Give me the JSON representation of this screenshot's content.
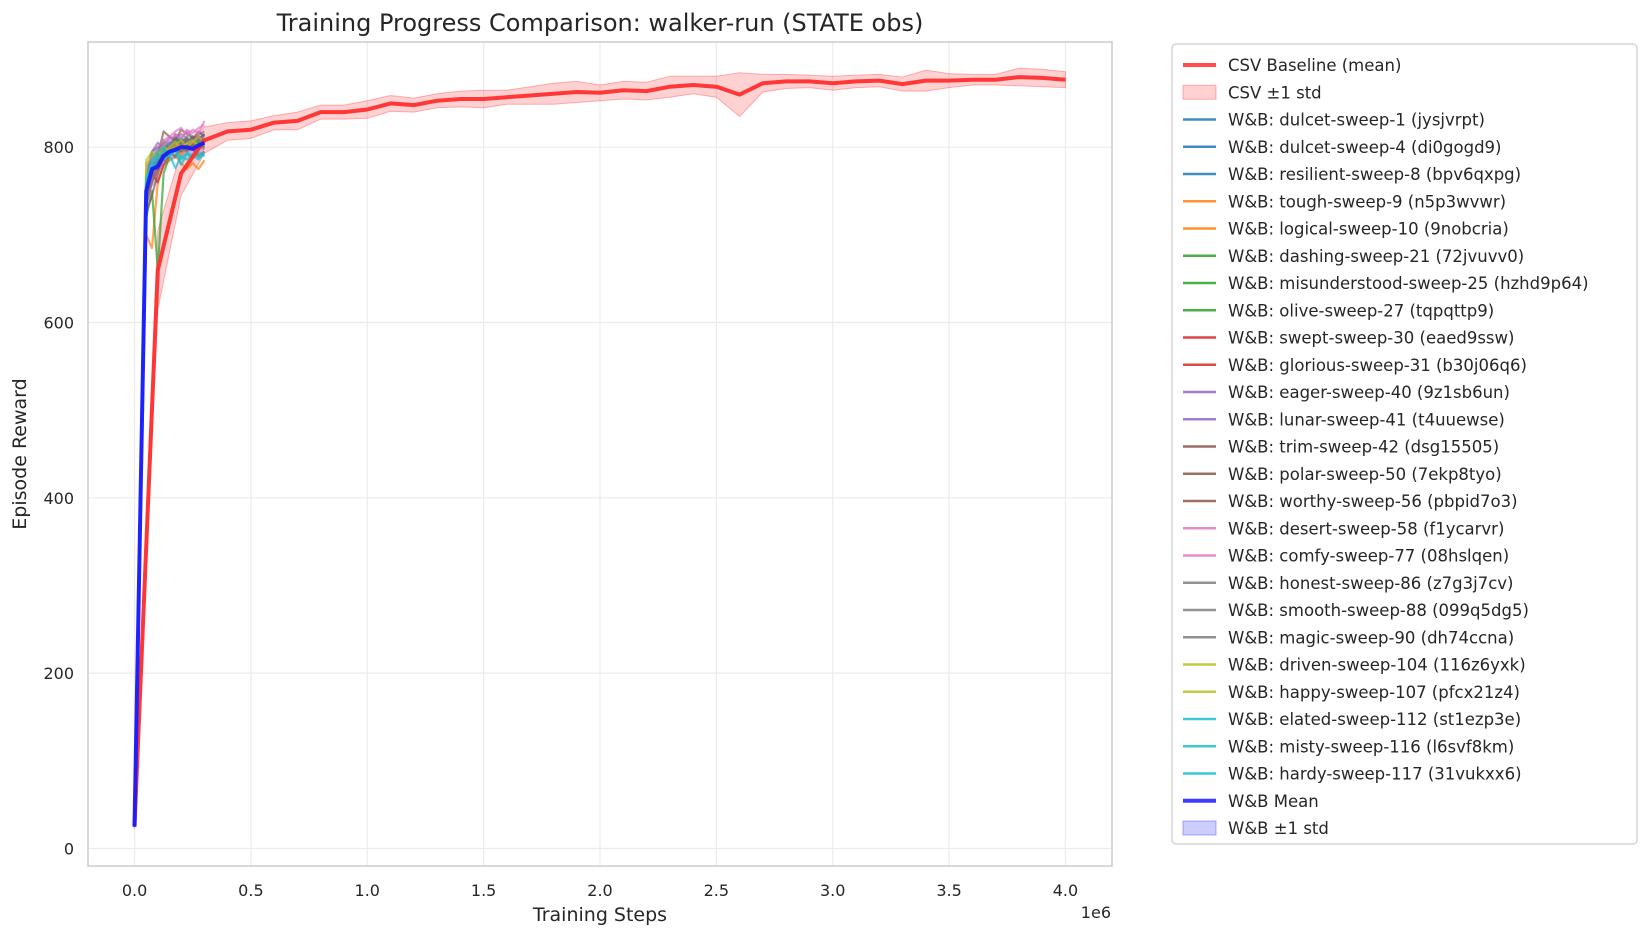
{
  "chart_data": {
    "type": "line",
    "title": "Training Progress Comparison: walker-run (STATE obs)",
    "xlabel": "Training Steps",
    "ylabel": "Episode Reward",
    "x_offset_label": "1e6",
    "xlim": [
      -200000,
      4200000
    ],
    "ylim": [
      -20,
      920
    ],
    "x_ticks": [
      0,
      500000,
      1000000,
      1500000,
      2000000,
      2500000,
      3000000,
      3500000,
      4000000
    ],
    "x_tick_labels": [
      "0.0",
      "0.5",
      "1.0",
      "1.5",
      "2.0",
      "2.5",
      "3.0",
      "3.5",
      "4.0"
    ],
    "y_ticks": [
      0,
      200,
      400,
      600,
      800
    ],
    "y_tick_labels": [
      "0",
      "200",
      "400",
      "600",
      "800"
    ],
    "grid": true,
    "legend_position": "outside-right",
    "baseline": {
      "name": "CSV Baseline (mean)",
      "band_name": "CSV ±1 std",
      "color": "#ff2e2e",
      "x": [
        0,
        100000,
        200000,
        300000,
        400000,
        500000,
        600000,
        700000,
        800000,
        900000,
        1000000,
        1100000,
        1200000,
        1300000,
        1400000,
        1500000,
        1600000,
        1700000,
        1800000,
        1900000,
        2000000,
        2100000,
        2200000,
        2300000,
        2400000,
        2500000,
        2600000,
        2700000,
        2800000,
        2900000,
        3000000,
        3100000,
        3200000,
        3300000,
        3400000,
        3500000,
        3600000,
        3700000,
        3800000,
        3900000,
        4000000
      ],
      "mean": [
        25,
        660,
        770,
        808,
        818,
        820,
        828,
        830,
        840,
        840,
        843,
        850,
        848,
        853,
        855,
        855,
        857,
        859,
        861,
        863,
        862,
        865,
        864,
        869,
        871,
        869,
        860,
        873,
        875,
        875,
        873,
        875,
        876,
        872,
        876,
        876,
        877,
        877,
        880,
        879,
        877
      ],
      "std": [
        3,
        45,
        25,
        15,
        10,
        10,
        8,
        10,
        8,
        8,
        10,
        9,
        8,
        8,
        9,
        10,
        8,
        10,
        12,
        12,
        9,
        10,
        10,
        12,
        10,
        12,
        25,
        10,
        8,
        7,
        8,
        7,
        7,
        8,
        12,
        8,
        6,
        6,
        10,
        10,
        9
      ]
    },
    "wb_x": [
      0,
      50000,
      75000,
      100000,
      125000,
      150000,
      175000,
      200000,
      225000,
      250000,
      275000,
      300000
    ],
    "wb_mean": {
      "name": "W&B Mean",
      "band_name": "W&B ±1 std",
      "color": "#1a1aff",
      "values": [
        25,
        750,
        775,
        778,
        790,
        795,
        797,
        800,
        800,
        798,
        802,
        805
      ],
      "std": [
        3,
        25,
        20,
        18,
        15,
        12,
        10,
        10,
        10,
        10,
        10,
        10
      ]
    },
    "series": [
      {
        "name": "W&B: dulcet-sweep-1 (jysjvrpt)",
        "color": "#1f77b4",
        "values": [
          25,
          740,
          770,
          790,
          800,
          795,
          805,
          810,
          806,
          812,
          810,
          814
        ]
      },
      {
        "name": "W&B: dulcet-sweep-4 (di0gogd9)",
        "color": "#1f77b4",
        "values": [
          25,
          760,
          785,
          775,
          795,
          805,
          800,
          798,
          808,
          804,
          812,
          808
        ]
      },
      {
        "name": "W&B: resilient-sweep-8 (bpv6qxpg)",
        "color": "#1f77b4",
        "values": [
          25,
          755,
          795,
          800,
          790,
          800,
          812,
          805,
          800,
          812,
          808,
          815
        ]
      },
      {
        "name": "W&B: tough-sweep-9 (n5p3wvwr)",
        "color": "#ff7f0e",
        "values": [
          25,
          700,
          685,
          760,
          780,
          785,
          790,
          782,
          775,
          782,
          775,
          785
        ]
      },
      {
        "name": "W&B: logical-sweep-10 (9nobcria)",
        "color": "#ff7f0e",
        "values": [
          25,
          770,
          780,
          790,
          800,
          795,
          798,
          790,
          800,
          805,
          798,
          802
        ]
      },
      {
        "name": "W&B: dashing-sweep-21 (72jvuvv0)",
        "color": "#2ca02c",
        "values": [
          25,
          720,
          750,
          660,
          770,
          790,
          800,
          795,
          802,
          798,
          805,
          800
        ]
      },
      {
        "name": "W&B: misunderstood-sweep-25 (hzhd9p64)",
        "color": "#2ca02c",
        "values": [
          25,
          750,
          780,
          785,
          805,
          798,
          810,
          805,
          812,
          800,
          806,
          810
        ]
      },
      {
        "name": "W&B: olive-sweep-27 (tqpqttp9)",
        "color": "#2ca02c",
        "values": [
          25,
          765,
          790,
          795,
          785,
          800,
          802,
          808,
          798,
          810,
          804,
          808
        ]
      },
      {
        "name": "W&B: swept-sweep-30 (eaed9ssw)",
        "color": "#d62728",
        "values": [
          25,
          735,
          760,
          775,
          795,
          790,
          805,
          798,
          810,
          803,
          799,
          806
        ]
      },
      {
        "name": "W&B: glorious-sweep-31 (b30j06q6)",
        "color": "#d62728",
        "values": [
          25,
          745,
          770,
          760,
          780,
          792,
          796,
          806,
          795,
          808,
          812,
          804
        ]
      },
      {
        "name": "W&B: eager-sweep-40 (9z1sb6un)",
        "color": "#9467bd",
        "values": [
          25,
          770,
          795,
          805,
          800,
          812,
          808,
          815,
          810,
          806,
          814,
          818
        ]
      },
      {
        "name": "W&B: lunar-sweep-41 (t4uuewse)",
        "color": "#9467bd",
        "values": [
          25,
          760,
          780,
          798,
          808,
          802,
          815,
          810,
          818,
          812,
          808,
          815
        ]
      },
      {
        "name": "W&B: trim-sweep-42 (dsg15505)",
        "color": "#8c564b",
        "values": [
          25,
          755,
          765,
          782,
          798,
          795,
          790,
          800,
          808,
          802,
          799,
          806
        ]
      },
      {
        "name": "W&B: polar-sweep-50 (7ekp8tyo)",
        "color": "#8c564b",
        "values": [
          25,
          740,
          770,
          790,
          818,
          812,
          808,
          820,
          815,
          810,
          818,
          812
        ]
      },
      {
        "name": "W&B: worthy-sweep-56 (pbpid7o3)",
        "color": "#8c564b",
        "values": [
          25,
          725,
          745,
          770,
          788,
          792,
          800,
          795,
          803,
          798,
          790,
          795
        ]
      },
      {
        "name": "W&B: desert-sweep-58 (f1ycarvr)",
        "color": "#e377c2",
        "values": [
          25,
          760,
          785,
          800,
          808,
          812,
          818,
          822,
          814,
          820,
          816,
          830
        ]
      },
      {
        "name": "W&B: comfy-sweep-77 (08hslqen)",
        "color": "#e377c2",
        "values": [
          25,
          750,
          780,
          795,
          802,
          808,
          814,
          810,
          820,
          816,
          822,
          825
        ]
      },
      {
        "name": "W&B: honest-sweep-86 (z7g3j7cv)",
        "color": "#7f7f7f",
        "values": [
          25,
          735,
          760,
          780,
          790,
          795,
          788,
          798,
          795,
          800,
          802,
          798
        ]
      },
      {
        "name": "W&B: smooth-sweep-88 (099q5dg5)",
        "color": "#7f7f7f",
        "values": [
          25,
          755,
          775,
          792,
          800,
          798,
          806,
          802,
          808,
          804,
          800,
          806
        ]
      },
      {
        "name": "W&B: magic-sweep-90 (dh74ccna)",
        "color": "#7f7f7f",
        "values": [
          25,
          745,
          768,
          785,
          795,
          800,
          798,
          805,
          800,
          806,
          810,
          804
        ]
      },
      {
        "name": "W&B: driven-sweep-104 (116z6yxk)",
        "color": "#bcbd22",
        "values": [
          25,
          780,
          790,
          795,
          792,
          800,
          806,
          798,
          804,
          808,
          802,
          810
        ]
      },
      {
        "name": "W&B: happy-sweep-107 (pfcx21z4)",
        "color": "#bcbd22",
        "values": [
          25,
          785,
          795,
          788,
          800,
          796,
          802,
          808,
          800,
          806,
          812,
          806
        ]
      },
      {
        "name": "W&B: elated-sweep-112 (st1ezp3e)",
        "color": "#17becf",
        "values": [
          25,
          760,
          780,
          790,
          785,
          792,
          776,
          790,
          786,
          792,
          788,
          794
        ]
      },
      {
        "name": "W&B: misty-sweep-116 (l6svf8km)",
        "color": "#17becf",
        "values": [
          25,
          750,
          775,
          788,
          796,
          790,
          798,
          786,
          794,
          790,
          786,
          792
        ]
      },
      {
        "name": "W&B: hardy-sweep-117 (31vukxx6)",
        "color": "#17becf",
        "values": [
          25,
          765,
          785,
          795,
          800,
          790,
          796,
          780,
          792,
          788,
          794,
          790
        ]
      }
    ]
  }
}
